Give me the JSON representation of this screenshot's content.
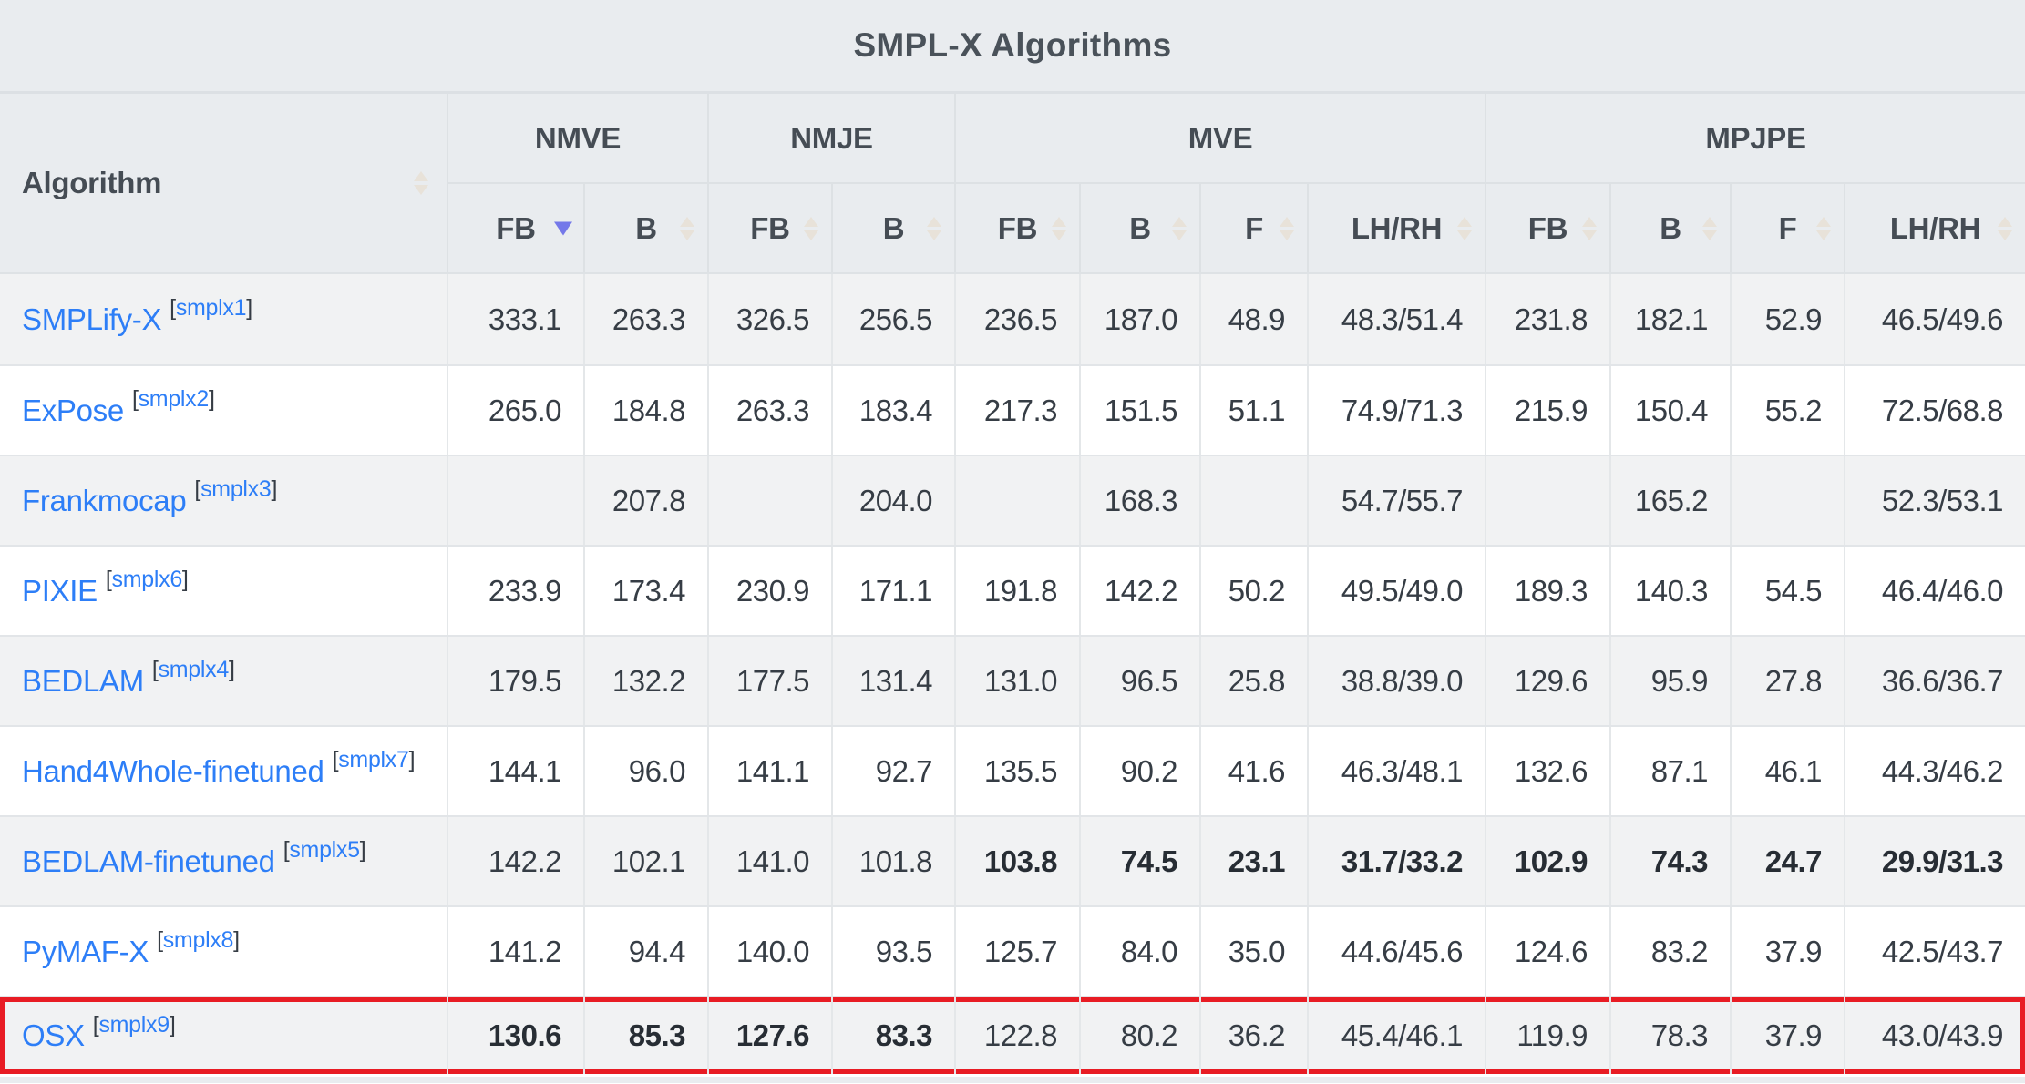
{
  "table_title": "SMPL-X Algorithms",
  "header": {
    "algorithm_column_label": "Algorithm",
    "groups": [
      {
        "label": "NMVE",
        "columns": [
          {
            "label": "FB",
            "sort": "desc"
          },
          {
            "label": "B",
            "sort": "none"
          }
        ]
      },
      {
        "label": "NMJE",
        "columns": [
          {
            "label": "FB",
            "sort": "none"
          },
          {
            "label": "B",
            "sort": "none"
          }
        ]
      },
      {
        "label": "MVE",
        "columns": [
          {
            "label": "FB",
            "sort": "none"
          },
          {
            "label": "B",
            "sort": "none"
          },
          {
            "label": "F",
            "sort": "none"
          },
          {
            "label": "LH/RH",
            "sort": "none"
          }
        ]
      },
      {
        "label": "MPJPE",
        "columns": [
          {
            "label": "FB",
            "sort": "none"
          },
          {
            "label": "B",
            "sort": "none"
          },
          {
            "label": "F",
            "sort": "none"
          },
          {
            "label": "LH/RH",
            "sort": "none"
          }
        ]
      }
    ],
    "sorted_column": "NMVE FB",
    "sort_direction": "desc"
  },
  "rows": [
    {
      "algorithm": "SMPLify-X",
      "citation": "smplx1",
      "values": [
        "333.1",
        "263.3",
        "326.5",
        "256.5",
        "236.5",
        "187.0",
        "48.9",
        "48.3/51.4",
        "231.8",
        "182.1",
        "52.9",
        "46.5/49.6"
      ],
      "bold": [],
      "highlighted": false
    },
    {
      "algorithm": "ExPose",
      "citation": "smplx2",
      "values": [
        "265.0",
        "184.8",
        "263.3",
        "183.4",
        "217.3",
        "151.5",
        "51.1",
        "74.9/71.3",
        "215.9",
        "150.4",
        "55.2",
        "72.5/68.8"
      ],
      "bold": [],
      "highlighted": false
    },
    {
      "algorithm": "Frankmocap",
      "citation": "smplx3",
      "values": [
        "",
        "207.8",
        "",
        "204.0",
        "",
        "168.3",
        "",
        "54.7/55.7",
        "",
        "165.2",
        "",
        "52.3/53.1"
      ],
      "bold": [],
      "highlighted": false
    },
    {
      "algorithm": "PIXIE",
      "citation": "smplx6",
      "values": [
        "233.9",
        "173.4",
        "230.9",
        "171.1",
        "191.8",
        "142.2",
        "50.2",
        "49.5/49.0",
        "189.3",
        "140.3",
        "54.5",
        "46.4/46.0"
      ],
      "bold": [],
      "highlighted": false
    },
    {
      "algorithm": "BEDLAM",
      "citation": "smplx4",
      "values": [
        "179.5",
        "132.2",
        "177.5",
        "131.4",
        "131.0",
        "96.5",
        "25.8",
        "38.8/39.0",
        "129.6",
        "95.9",
        "27.8",
        "36.6/36.7"
      ],
      "bold": [],
      "highlighted": false
    },
    {
      "algorithm": "Hand4Whole-finetuned",
      "citation": "smplx7",
      "values": [
        "144.1",
        "96.0",
        "141.1",
        "92.7",
        "135.5",
        "90.2",
        "41.6",
        "46.3/48.1",
        "132.6",
        "87.1",
        "46.1",
        "44.3/46.2"
      ],
      "bold": [],
      "highlighted": false
    },
    {
      "algorithm": "BEDLAM-finetuned",
      "citation": "smplx5",
      "values": [
        "142.2",
        "102.1",
        "141.0",
        "101.8",
        "103.8",
        "74.5",
        "23.1",
        "31.7/33.2",
        "102.9",
        "74.3",
        "24.7",
        "29.9/31.3"
      ],
      "bold": [
        4,
        5,
        6,
        7,
        8,
        9,
        10,
        11
      ],
      "highlighted": false
    },
    {
      "algorithm": "PyMAF-X",
      "citation": "smplx8",
      "values": [
        "141.2",
        "94.4",
        "140.0",
        "93.5",
        "125.7",
        "84.0",
        "35.0",
        "44.6/45.6",
        "124.6",
        "83.2",
        "37.9",
        "42.5/43.7"
      ],
      "bold": [],
      "highlighted": false
    },
    {
      "algorithm": "OSX",
      "citation": "smplx9",
      "values": [
        "130.6",
        "85.3",
        "127.6",
        "83.3",
        "122.8",
        "80.2",
        "36.2",
        "45.4/46.1",
        "119.9",
        "78.3",
        "37.9",
        "43.0/43.9"
      ],
      "bold": [
        0,
        1,
        2,
        3
      ],
      "highlighted": true
    }
  ],
  "colors": {
    "header_bg": "#e9ecef",
    "row_stripe_bg": "#f1f2f3",
    "row_bg": "#ffffff",
    "link_blue": "#2d7ef7",
    "text_dark": "#363d45",
    "highlight_border_red": "#e81c24",
    "sort_active_arrow": "#7478e9",
    "sort_inactive_arrow": "#e8e2d9"
  }
}
